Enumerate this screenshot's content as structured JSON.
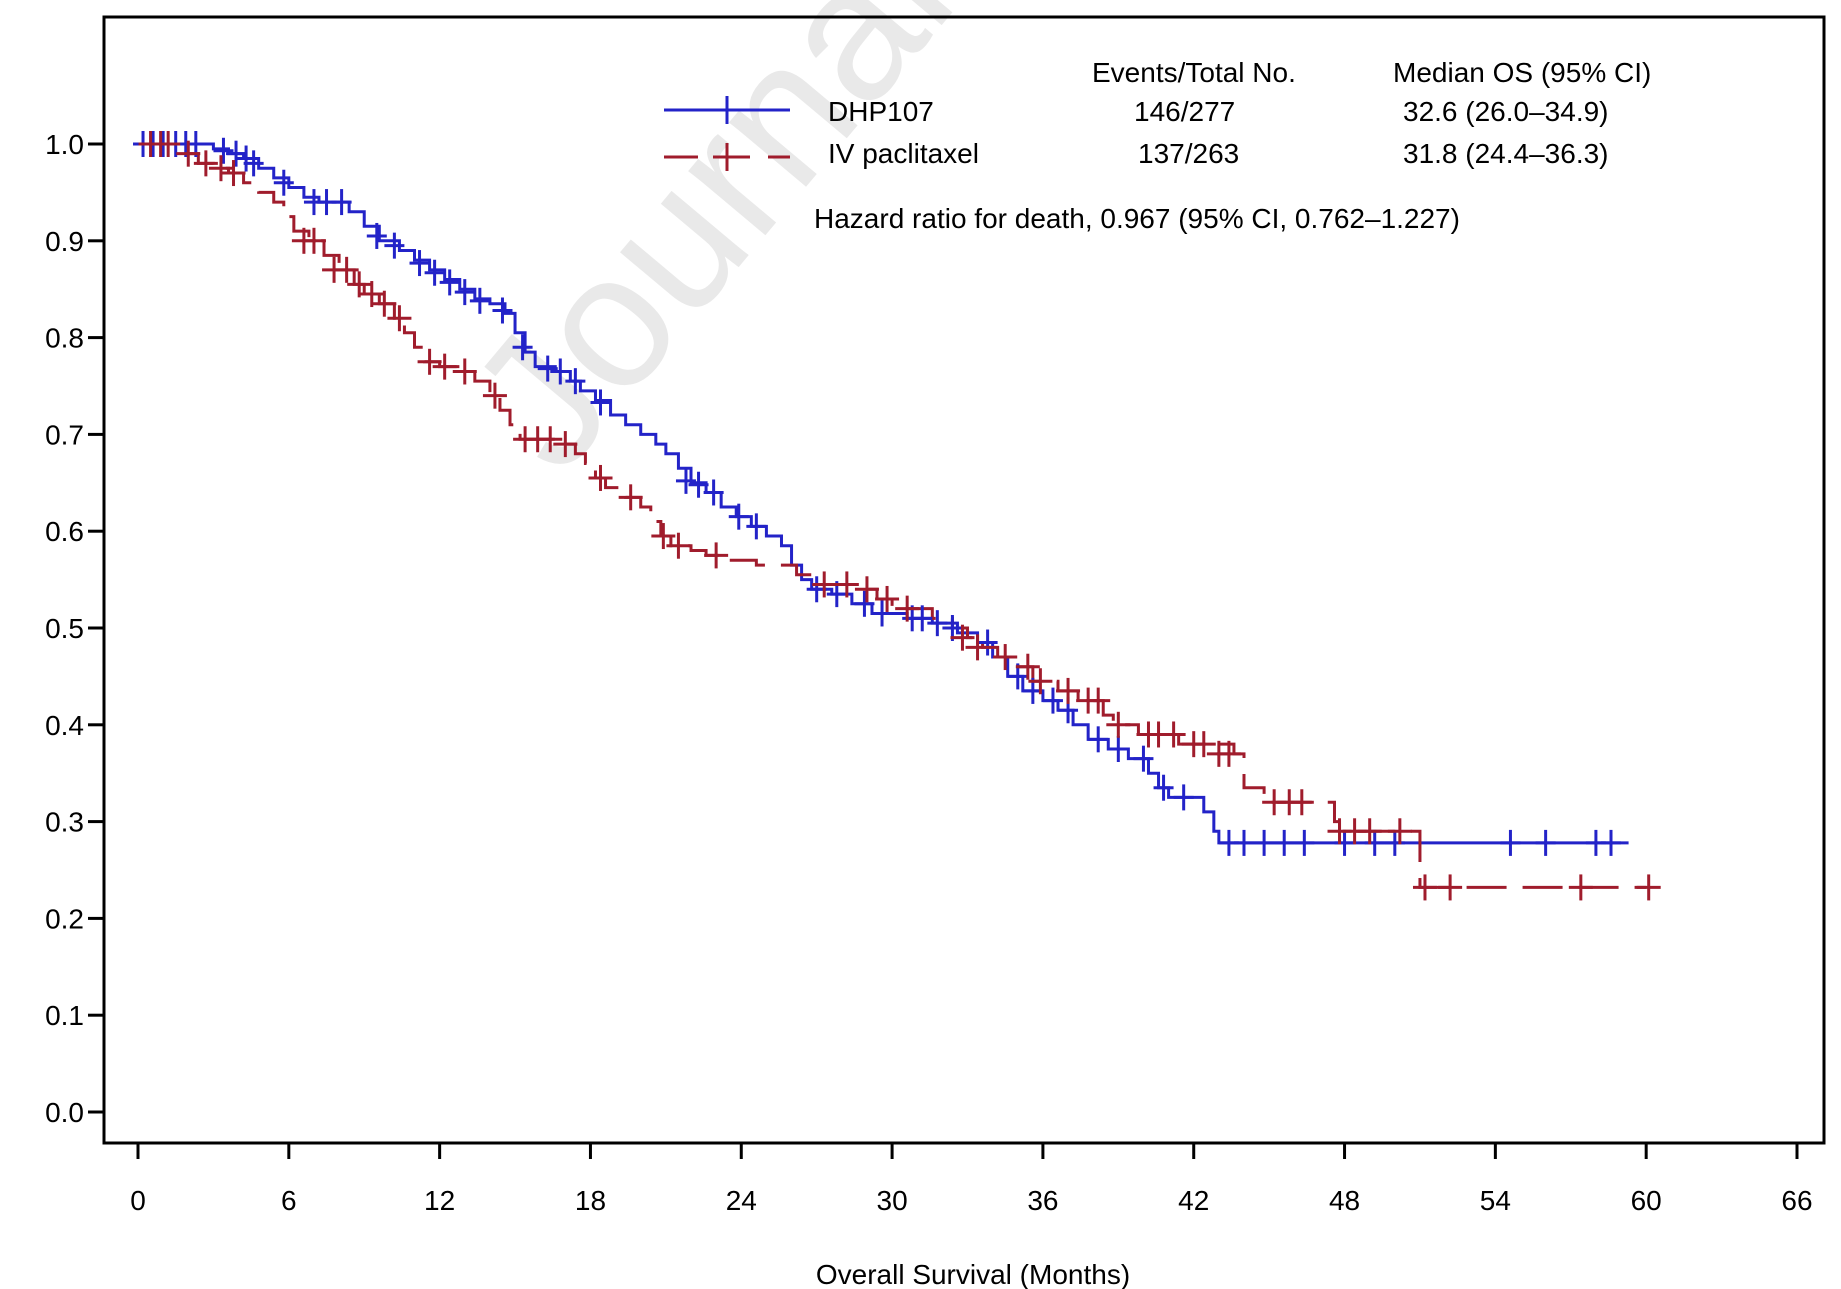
{
  "chart_data": {
    "type": "line",
    "subtype": "kaplan-meier",
    "title": "",
    "xlabel": "Overall Survival (Months)",
    "ylabel": "",
    "xlim": [
      0,
      66
    ],
    "ylim": [
      0,
      1
    ],
    "x_ticks": [
      "0",
      "6",
      "12",
      "18",
      "24",
      "30",
      "36",
      "42",
      "48",
      "54",
      "60",
      "66"
    ],
    "y_ticks": [
      "0.0",
      "0.1",
      "0.2",
      "0.3",
      "0.4",
      "0.5",
      "0.6",
      "0.7",
      "0.8",
      "0.9",
      "1.0"
    ],
    "grid": false,
    "legend_position": "top-right",
    "legend_headers": {
      "events": "Events/Total No.",
      "median": "Median OS (95% CI)"
    },
    "annotation": "Hazard ratio for death, 0.967 (95% CI, 0.762–1.227)",
    "watermark": "Journal Pre-proof",
    "series": [
      {
        "name": "DHP107",
        "events_total": "146/277",
        "median_os": "32.6 (26.0–34.9)",
        "color": "#2323c8",
        "dash": "solid",
        "steps": [
          [
            0,
            1.0
          ],
          [
            2.4,
            1.0
          ],
          [
            3.0,
            0.995
          ],
          [
            3.6,
            0.99
          ],
          [
            4.2,
            0.985
          ],
          [
            4.8,
            0.975
          ],
          [
            5.4,
            0.965
          ],
          [
            6.0,
            0.955
          ],
          [
            6.6,
            0.945
          ],
          [
            7.2,
            0.94
          ],
          [
            8.4,
            0.93
          ],
          [
            9.0,
            0.915
          ],
          [
            9.6,
            0.9
          ],
          [
            10.4,
            0.89
          ],
          [
            11.0,
            0.88
          ],
          [
            11.6,
            0.87
          ],
          [
            12.2,
            0.86
          ],
          [
            12.8,
            0.85
          ],
          [
            13.4,
            0.84
          ],
          [
            14.0,
            0.835
          ],
          [
            14.6,
            0.825
          ],
          [
            15.0,
            0.805
          ],
          [
            15.4,
            0.785
          ],
          [
            15.8,
            0.77
          ],
          [
            16.6,
            0.765
          ],
          [
            17.2,
            0.755
          ],
          [
            17.6,
            0.745
          ],
          [
            18.2,
            0.735
          ],
          [
            18.8,
            0.72
          ],
          [
            19.4,
            0.71
          ],
          [
            20.0,
            0.7
          ],
          [
            20.6,
            0.69
          ],
          [
            21.0,
            0.68
          ],
          [
            21.5,
            0.665
          ],
          [
            22.0,
            0.65
          ],
          [
            22.6,
            0.64
          ],
          [
            23.2,
            0.625
          ],
          [
            23.8,
            0.615
          ],
          [
            24.4,
            0.605
          ],
          [
            25.0,
            0.595
          ],
          [
            25.6,
            0.585
          ],
          [
            26.0,
            0.565
          ],
          [
            26.4,
            0.55
          ],
          [
            26.8,
            0.54
          ],
          [
            27.6,
            0.535
          ],
          [
            28.4,
            0.525
          ],
          [
            29.2,
            0.515
          ],
          [
            30.6,
            0.51
          ],
          [
            31.6,
            0.505
          ],
          [
            32.6,
            0.495
          ],
          [
            33.4,
            0.485
          ],
          [
            34.0,
            0.47
          ],
          [
            34.6,
            0.45
          ],
          [
            35.2,
            0.435
          ],
          [
            36.0,
            0.425
          ],
          [
            36.6,
            0.415
          ],
          [
            37.2,
            0.4
          ],
          [
            37.8,
            0.385
          ],
          [
            38.6,
            0.375
          ],
          [
            39.4,
            0.365
          ],
          [
            40.2,
            0.35
          ],
          [
            40.6,
            0.335
          ],
          [
            41.0,
            0.325
          ],
          [
            42.4,
            0.31
          ],
          [
            42.8,
            0.29
          ],
          [
            43.0,
            0.278
          ],
          [
            59.3,
            0.278
          ]
        ],
        "censors": [
          [
            0.2,
            1.0
          ],
          [
            0.6,
            1.0
          ],
          [
            1.0,
            1.0
          ],
          [
            1.5,
            1.0
          ],
          [
            1.9,
            1.0
          ],
          [
            2.3,
            1.0
          ],
          [
            3.4,
            0.993
          ],
          [
            3.9,
            0.99
          ],
          [
            4.3,
            0.985
          ],
          [
            4.6,
            0.98
          ],
          [
            5.8,
            0.96
          ],
          [
            7.0,
            0.94
          ],
          [
            7.5,
            0.94
          ],
          [
            8.1,
            0.94
          ],
          [
            9.5,
            0.905
          ],
          [
            10.2,
            0.895
          ],
          [
            11.2,
            0.877
          ],
          [
            11.8,
            0.867
          ],
          [
            12.4,
            0.857
          ],
          [
            13.0,
            0.847
          ],
          [
            13.6,
            0.838
          ],
          [
            14.5,
            0.828
          ],
          [
            15.3,
            0.79
          ],
          [
            16.3,
            0.768
          ],
          [
            16.8,
            0.765
          ],
          [
            17.4,
            0.755
          ],
          [
            18.4,
            0.733
          ],
          [
            21.8,
            0.652
          ],
          [
            22.3,
            0.648
          ],
          [
            22.9,
            0.64
          ],
          [
            23.9,
            0.615
          ],
          [
            24.6,
            0.605
          ],
          [
            27.0,
            0.54
          ],
          [
            27.8,
            0.535
          ],
          [
            28.9,
            0.525
          ],
          [
            29.6,
            0.515
          ],
          [
            30.8,
            0.51
          ],
          [
            31.2,
            0.51
          ],
          [
            31.8,
            0.505
          ],
          [
            32.4,
            0.5
          ],
          [
            33.8,
            0.485
          ],
          [
            35.0,
            0.45
          ],
          [
            35.6,
            0.435
          ],
          [
            36.4,
            0.425
          ],
          [
            37.0,
            0.415
          ],
          [
            38.2,
            0.385
          ],
          [
            39.0,
            0.375
          ],
          [
            40.0,
            0.365
          ],
          [
            40.8,
            0.335
          ],
          [
            41.6,
            0.325
          ],
          [
            43.4,
            0.278
          ],
          [
            44.0,
            0.278
          ],
          [
            44.8,
            0.278
          ],
          [
            45.6,
            0.278
          ],
          [
            46.4,
            0.278
          ],
          [
            48.0,
            0.278
          ],
          [
            49.2,
            0.278
          ],
          [
            50.0,
            0.278
          ],
          [
            54.6,
            0.278
          ],
          [
            56.0,
            0.278
          ],
          [
            58.0,
            0.278
          ],
          [
            58.6,
            0.278
          ]
        ]
      },
      {
        "name": "IV paclitaxel",
        "events_total": "137/263",
        "median_os": "31.8 (24.4–36.3)",
        "color": "#a01c2c",
        "dash": "dashed",
        "steps": [
          [
            0,
            1.0
          ],
          [
            1.8,
            0.99
          ],
          [
            2.4,
            0.98
          ],
          [
            3.0,
            0.975
          ],
          [
            3.6,
            0.97
          ],
          [
            4.2,
            0.96
          ],
          [
            4.8,
            0.95
          ],
          [
            5.4,
            0.94
          ],
          [
            5.8,
            0.925
          ],
          [
            6.2,
            0.91
          ],
          [
            6.8,
            0.9
          ],
          [
            7.4,
            0.885
          ],
          [
            8.0,
            0.87
          ],
          [
            8.6,
            0.855
          ],
          [
            9.0,
            0.845
          ],
          [
            9.6,
            0.835
          ],
          [
            10.2,
            0.82
          ],
          [
            10.6,
            0.805
          ],
          [
            11.0,
            0.79
          ],
          [
            11.4,
            0.775
          ],
          [
            12.0,
            0.77
          ],
          [
            12.8,
            0.765
          ],
          [
            13.4,
            0.755
          ],
          [
            14.0,
            0.74
          ],
          [
            14.4,
            0.725
          ],
          [
            14.8,
            0.71
          ],
          [
            15.2,
            0.695
          ],
          [
            16.6,
            0.69
          ],
          [
            17.4,
            0.68
          ],
          [
            17.8,
            0.67
          ],
          [
            18.2,
            0.655
          ],
          [
            18.6,
            0.645
          ],
          [
            19.4,
            0.635
          ],
          [
            20.0,
            0.625
          ],
          [
            20.4,
            0.61
          ],
          [
            20.8,
            0.595
          ],
          [
            21.2,
            0.585
          ],
          [
            22.0,
            0.58
          ],
          [
            22.6,
            0.575
          ],
          [
            23.2,
            0.57
          ],
          [
            24.6,
            0.565
          ],
          [
            26.2,
            0.555
          ],
          [
            26.8,
            0.545
          ],
          [
            28.8,
            0.54
          ],
          [
            29.4,
            0.53
          ],
          [
            30.0,
            0.52
          ],
          [
            31.6,
            0.51
          ],
          [
            32.4,
            0.5
          ],
          [
            33.0,
            0.49
          ],
          [
            33.6,
            0.48
          ],
          [
            34.2,
            0.47
          ],
          [
            35.0,
            0.46
          ],
          [
            35.6,
            0.445
          ],
          [
            36.6,
            0.435
          ],
          [
            37.4,
            0.425
          ],
          [
            38.4,
            0.41
          ],
          [
            38.8,
            0.4
          ],
          [
            39.8,
            0.39
          ],
          [
            41.4,
            0.38
          ],
          [
            43.6,
            0.37
          ],
          [
            44.0,
            0.335
          ],
          [
            44.8,
            0.32
          ],
          [
            47.6,
            0.3
          ],
          [
            47.8,
            0.29
          ],
          [
            50.6,
            0.29
          ],
          [
            51.0,
            0.232
          ],
          [
            60.0,
            0.232
          ]
        ],
        "censors": [
          [
            0.5,
            1.0
          ],
          [
            0.9,
            1.0
          ],
          [
            1.2,
            1.0
          ],
          [
            2.0,
            0.99
          ],
          [
            2.7,
            0.98
          ],
          [
            3.3,
            0.975
          ],
          [
            3.8,
            0.97
          ],
          [
            6.6,
            0.9
          ],
          [
            7.0,
            0.9
          ],
          [
            7.8,
            0.87
          ],
          [
            8.3,
            0.87
          ],
          [
            8.8,
            0.855
          ],
          [
            9.3,
            0.845
          ],
          [
            9.8,
            0.835
          ],
          [
            10.4,
            0.82
          ],
          [
            11.6,
            0.775
          ],
          [
            12.2,
            0.77
          ],
          [
            13.0,
            0.765
          ],
          [
            14.2,
            0.74
          ],
          [
            15.4,
            0.695
          ],
          [
            15.9,
            0.695
          ],
          [
            16.4,
            0.695
          ],
          [
            17.0,
            0.69
          ],
          [
            18.4,
            0.655
          ],
          [
            19.6,
            0.635
          ],
          [
            20.9,
            0.595
          ],
          [
            21.5,
            0.585
          ],
          [
            23.0,
            0.575
          ],
          [
            27.3,
            0.545
          ],
          [
            28.2,
            0.545
          ],
          [
            29.0,
            0.54
          ],
          [
            29.8,
            0.53
          ],
          [
            30.6,
            0.52
          ],
          [
            32.8,
            0.49
          ],
          [
            33.4,
            0.48
          ],
          [
            34.5,
            0.47
          ],
          [
            35.4,
            0.46
          ],
          [
            35.9,
            0.445
          ],
          [
            37.0,
            0.435
          ],
          [
            37.8,
            0.425
          ],
          [
            38.2,
            0.425
          ],
          [
            39.0,
            0.4
          ],
          [
            40.2,
            0.39
          ],
          [
            40.6,
            0.39
          ],
          [
            41.2,
            0.39
          ],
          [
            42.0,
            0.38
          ],
          [
            42.4,
            0.38
          ],
          [
            43.0,
            0.37
          ],
          [
            43.4,
            0.37
          ],
          [
            45.2,
            0.32
          ],
          [
            45.8,
            0.32
          ],
          [
            46.3,
            0.32
          ],
          [
            47.8,
            0.29
          ],
          [
            48.4,
            0.29
          ],
          [
            49.0,
            0.29
          ],
          [
            50.2,
            0.29
          ],
          [
            51.2,
            0.232
          ],
          [
            52.2,
            0.232
          ],
          [
            57.4,
            0.232
          ],
          [
            60.1,
            0.232
          ]
        ]
      }
    ]
  }
}
